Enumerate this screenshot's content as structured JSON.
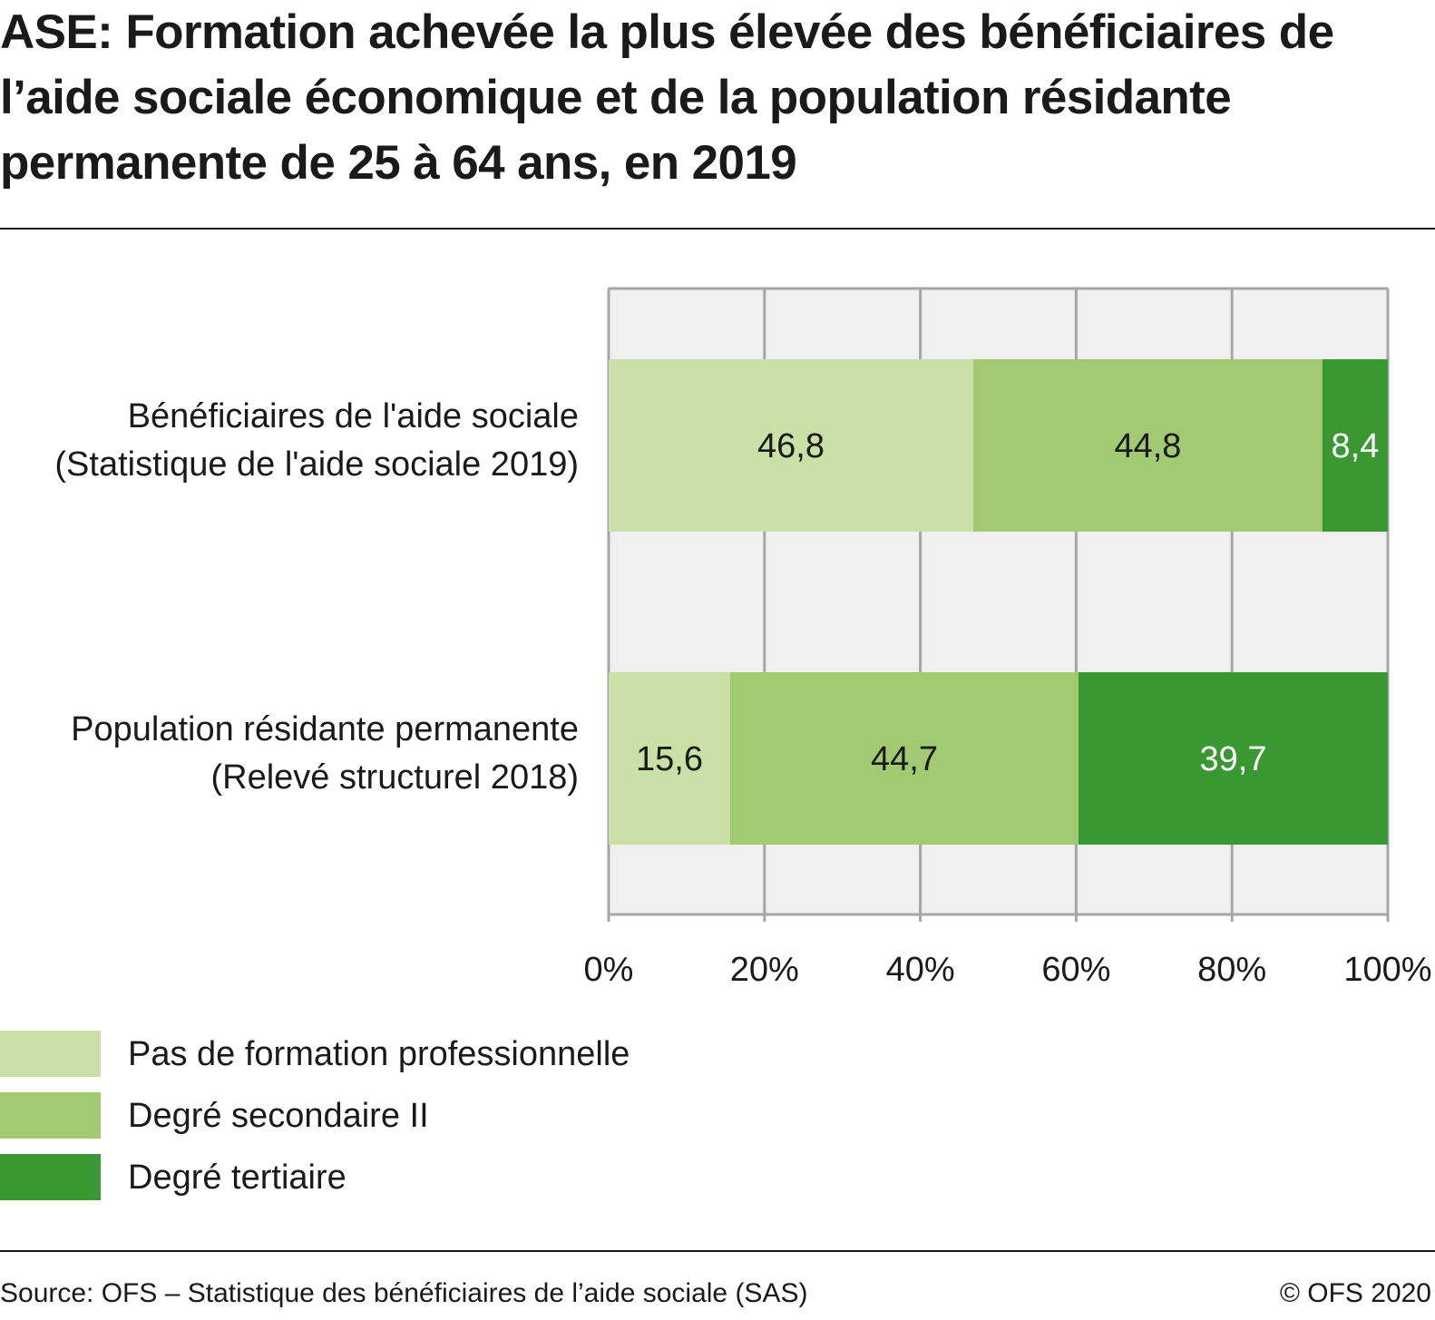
{
  "title": "ASE: Formation achevée la plus élevée des bénéficiaires de l’aide sociale économique et de la population résidante permanente de 25 à 64 ans, en 2019",
  "chart_data": {
    "type": "bar",
    "orientation": "horizontal",
    "stacked": true,
    "categories": [
      [
        "Bénéficiaires de l'aide sociale",
        "(Statistique de l'aide sociale 2019)"
      ],
      [
        "Population résidante permanente",
        "(Relevé structurel 2018)"
      ]
    ],
    "series": [
      {
        "name": "Pas de formation professionnelle",
        "color": "#c9e0a7",
        "label_color": "#1a1a1a",
        "values": [
          46.8,
          15.6
        ],
        "labels": [
          "46,8",
          "15,6"
        ]
      },
      {
        "name": "Degré secondaire II",
        "color": "#a2ca73",
        "label_color": "#1a1a1a",
        "values": [
          44.8,
          44.7
        ],
        "labels": [
          "44,8",
          "44,7"
        ]
      },
      {
        "name": "Degré tertiaire",
        "color": "#3a9833",
        "label_color": "#ffffff",
        "values": [
          8.4,
          39.7
        ],
        "labels": [
          "8,4",
          "39,7"
        ]
      }
    ],
    "xlim": [
      0,
      100
    ],
    "ticks": [
      0,
      20,
      40,
      60,
      80,
      100
    ],
    "tick_labels": [
      "0%",
      "20%",
      "40%",
      "60%",
      "80%",
      "100%"
    ],
    "grid": true,
    "legend_position": "bottom-left",
    "plot_background": "#f0f0f0"
  },
  "legend": [
    {
      "label": "Pas de formation professionnelle",
      "color": "#c9e0a7"
    },
    {
      "label": "Degré secondaire II",
      "color": "#a2ca73"
    },
    {
      "label": "Degré tertiaire",
      "color": "#3a9833"
    }
  ],
  "footer": {
    "source": "Source: OFS – Statistique des bénéficiaires de l’aide sociale (SAS)",
    "copyright": "© OFS 2020"
  }
}
